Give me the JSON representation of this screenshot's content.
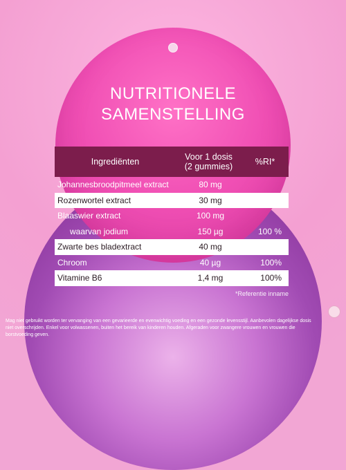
{
  "title": {
    "line1": "NUTRITIONELE",
    "line2": "SAMENSTELLING"
  },
  "table": {
    "headers": {
      "ingredients": "Ingrediënten",
      "dose_line1": "Voor 1 dosis",
      "dose_line2": "(2 gummies)",
      "ri": "%RI*"
    },
    "rows": [
      {
        "name": "Johannesbroodpitmeel extract",
        "amount": "80 mg",
        "ri": ""
      },
      {
        "name": "Rozenwortel extract",
        "amount": "30 mg",
        "ri": ""
      },
      {
        "name": "Blaaswier extract",
        "amount": "100 mg",
        "ri": ""
      },
      {
        "name": "waarvan jodium",
        "amount": "150 µg",
        "ri": "100 %"
      },
      {
        "name": "Zwarte bes bladextract",
        "amount": "40 mg",
        "ri": ""
      },
      {
        "name": "Chroom",
        "amount": "40 µg",
        "ri": "100%"
      },
      {
        "name": "Vitamine B6",
        "amount": "1,4 mg",
        "ri": "100%"
      }
    ]
  },
  "footnote": "*Referentie inname",
  "disclaimer": "Mag niet gebruikt worden ter vervanging van een gevarieerde en evenwichtig voeding en een gezonde levensstijl. Aanbevolen dagelijkse dosis niet overschrijden. Enkel voor volwassenen, buiten het bereik van kinderen houden. Afgeraden voor zwangere vrouwen en vrouwen die borstvoeding geven.",
  "colors": {
    "background": "#f2a6d4",
    "header_bg": "#7c1d4c",
    "top_ornament": "#f04fb4",
    "bottom_ornament": "#a14bb3"
  }
}
